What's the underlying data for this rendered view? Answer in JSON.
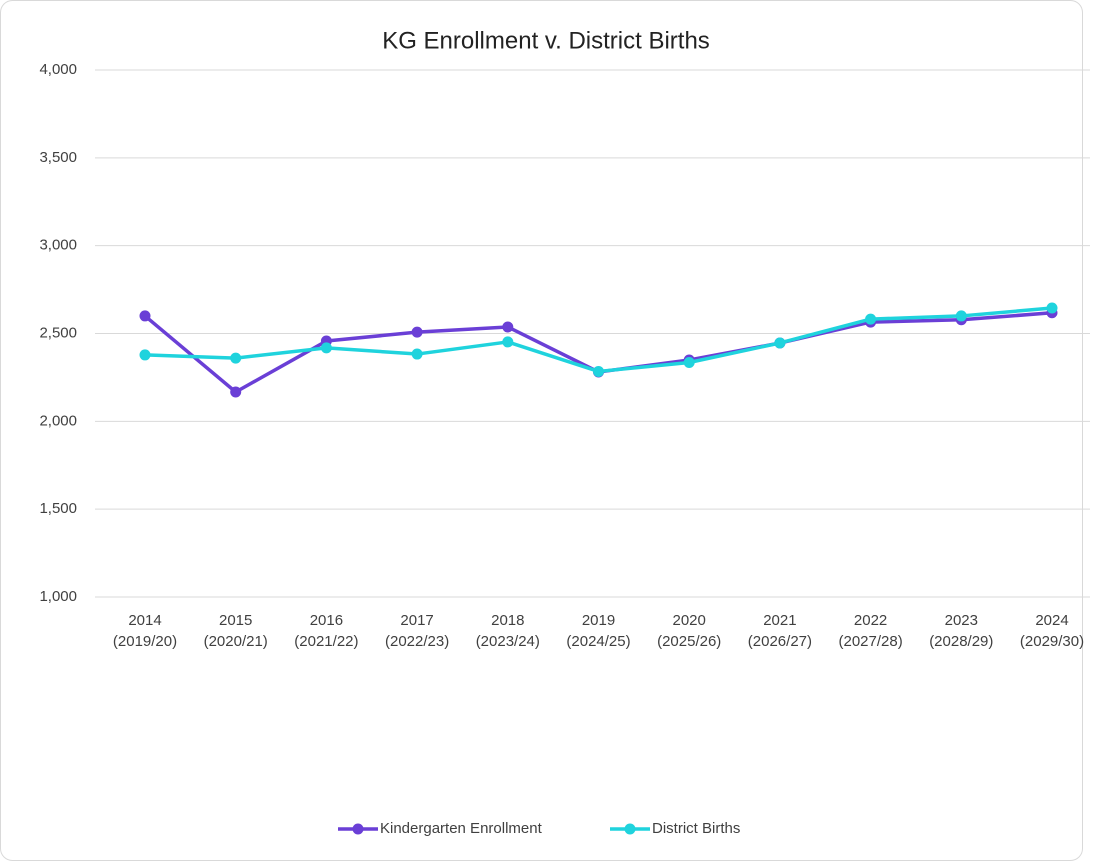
{
  "chart_data": {
    "type": "line",
    "title": "KG Enrollment v. District Births",
    "categories": [
      "2014 (2019/20)",
      "2015 (2020/21)",
      "2016 (2021/22)",
      "2017 (2022/23)",
      "2018 (2023/24)",
      "2019 (2024/25)",
      "2020 (2025/26)",
      "2021 (2026/27)",
      "2022 (2027/28)",
      "2023 (2028/29)",
      "2024 (2029/30)"
    ],
    "series": [
      {
        "name": "Kindergarten Enrollment",
        "color": "#6a3fd6",
        "values": [
          2600,
          2167,
          2457,
          2508,
          2537,
          2281,
          2349,
          2446,
          2565,
          2578,
          2618
        ]
      },
      {
        "name": "District Births",
        "color": "#1fd3dd",
        "values": [
          2378,
          2360,
          2418,
          2383,
          2452,
          2284,
          2335,
          2446,
          2582,
          2600,
          2645
        ]
      }
    ],
    "ylim": [
      1000,
      4000
    ],
    "yticks": [
      {
        "value": 1000,
        "label": "1,000"
      },
      {
        "value": 1500,
        "label": "1,500"
      },
      {
        "value": 2000,
        "label": "2,000"
      },
      {
        "value": 2500,
        "label": "2,500"
      },
      {
        "value": 3000,
        "label": "3,000"
      },
      {
        "value": 3500,
        "label": "3,500"
      },
      {
        "value": 4000,
        "label": "4,000"
      }
    ],
    "grid": true,
    "legend": "bottom"
  }
}
